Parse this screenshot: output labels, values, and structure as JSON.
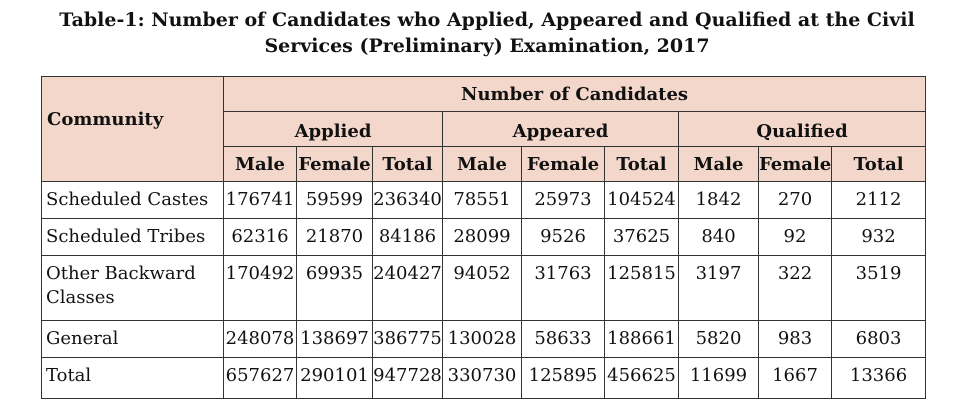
{
  "title": {
    "line1": "Table-1: Number of Candidates who Applied, Appeared and Qualified at the Civil",
    "line2": "Services (Preliminary) Examination, 2017"
  },
  "headers": {
    "community": "Community",
    "group": "Number of Candidates",
    "applied": "Applied",
    "appeared": "Appeared",
    "qualified": "Qualified",
    "male": "Male",
    "female": "Female",
    "total": "Total"
  },
  "rows": [
    {
      "community": "Scheduled Castes",
      "values": [
        "176741",
        "59599",
        "236340",
        "78551",
        "25973",
        "104524",
        "1842",
        "270",
        "2112"
      ]
    },
    {
      "community": "Scheduled Tribes",
      "values": [
        "62316",
        "21870",
        "84186",
        "28099",
        "9526",
        "37625",
        "840",
        "92",
        "932"
      ]
    },
    {
      "community": "Other Backward Classes",
      "values": [
        "170492",
        "69935",
        "240427",
        "94052",
        "31763",
        "125815",
        "3197",
        "322",
        "3519"
      ]
    },
    {
      "community": "General",
      "values": [
        "248078",
        "138697",
        "386775",
        "130028",
        "58633",
        "188661",
        "5820",
        "983",
        "6803"
      ]
    },
    {
      "community": "Total",
      "values": [
        "657627",
        "290101",
        "947728",
        "330730",
        "125895",
        "456625",
        "11699",
        "1667",
        "13366"
      ]
    }
  ]
}
